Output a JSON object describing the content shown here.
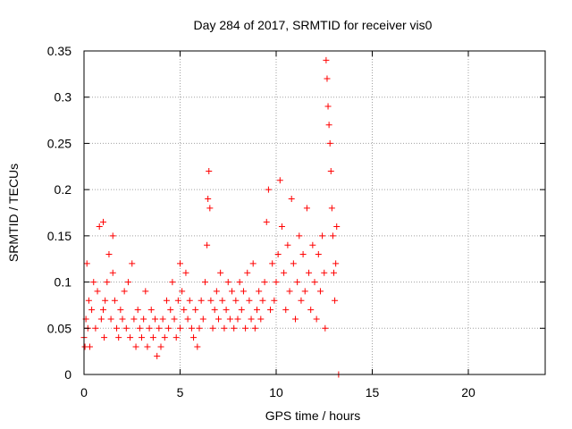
{
  "chart_data": {
    "type": "scatter",
    "title": "Day 284 of 2017, SRMTID for receiver vis0",
    "xlabel": "GPS time / hours",
    "ylabel": "SRMTID / TECUs",
    "xlim": [
      0,
      24
    ],
    "ylim": [
      0,
      0.35
    ],
    "xticks": [
      0,
      5,
      10,
      15,
      20
    ],
    "yticks": [
      0,
      0.05,
      0.1,
      0.15,
      0.2,
      0.25,
      0.3,
      0.35
    ],
    "xtick_labels": [
      "0",
      "5",
      "10",
      "15",
      "20"
    ],
    "ytick_labels": [
      "0",
      "0.05",
      "0.1",
      "0.15",
      "0.2",
      "0.25",
      "0.3",
      "0.35"
    ],
    "grid": true,
    "marker": "+",
    "color": "#ff0000",
    "series": [
      {
        "name": "vis0",
        "x": [
          0.0,
          0.05,
          0.1,
          0.15,
          0.2,
          0.25,
          0.3,
          0.4,
          0.5,
          0.6,
          0.7,
          0.8,
          0.9,
          1.0,
          1.0,
          1.05,
          1.1,
          1.2,
          1.3,
          1.4,
          1.5,
          1.5,
          1.6,
          1.7,
          1.8,
          1.9,
          2.0,
          2.1,
          2.2,
          2.3,
          2.4,
          2.5,
          2.6,
          2.7,
          2.8,
          2.9,
          3.0,
          3.1,
          3.2,
          3.3,
          3.4,
          3.5,
          3.6,
          3.7,
          3.8,
          3.9,
          4.0,
          4.1,
          4.2,
          4.3,
          4.4,
          4.5,
          4.6,
          4.7,
          4.8,
          4.9,
          5.0,
          5.0,
          5.1,
          5.2,
          5.3,
          5.4,
          5.5,
          5.6,
          5.7,
          5.8,
          5.9,
          6.0,
          6.1,
          6.2,
          6.3,
          6.4,
          6.45,
          6.5,
          6.55,
          6.6,
          6.7,
          6.8,
          6.9,
          7.0,
          7.1,
          7.2,
          7.3,
          7.4,
          7.5,
          7.6,
          7.7,
          7.8,
          7.9,
          8.0,
          8.1,
          8.2,
          8.3,
          8.4,
          8.5,
          8.6,
          8.7,
          8.8,
          8.9,
          9.0,
          9.1,
          9.2,
          9.3,
          9.4,
          9.5,
          9.6,
          9.7,
          9.8,
          9.9,
          10.0,
          10.1,
          10.2,
          10.3,
          10.4,
          10.5,
          10.6,
          10.7,
          10.8,
          10.9,
          11.0,
          11.1,
          11.2,
          11.3,
          11.4,
          11.5,
          11.6,
          11.7,
          11.8,
          11.9,
          12.0,
          12.1,
          12.2,
          12.3,
          12.4,
          12.5,
          12.55,
          12.6,
          12.65,
          12.7,
          12.75,
          12.8,
          12.85,
          12.9,
          12.95,
          13.0,
          13.05,
          13.1,
          13.15,
          13.25
        ],
        "y": [
          0.04,
          0.03,
          0.06,
          0.12,
          0.05,
          0.08,
          0.03,
          0.07,
          0.1,
          0.05,
          0.09,
          0.16,
          0.06,
          0.07,
          0.165,
          0.04,
          0.08,
          0.1,
          0.13,
          0.06,
          0.15,
          0.11,
          0.08,
          0.05,
          0.04,
          0.07,
          0.06,
          0.09,
          0.05,
          0.1,
          0.04,
          0.12,
          0.06,
          0.03,
          0.07,
          0.05,
          0.04,
          0.06,
          0.09,
          0.03,
          0.05,
          0.07,
          0.04,
          0.06,
          0.02,
          0.05,
          0.03,
          0.06,
          0.04,
          0.08,
          0.05,
          0.07,
          0.1,
          0.06,
          0.04,
          0.08,
          0.12,
          0.05,
          0.09,
          0.07,
          0.11,
          0.06,
          0.08,
          0.05,
          0.04,
          0.07,
          0.03,
          0.05,
          0.08,
          0.06,
          0.1,
          0.14,
          0.19,
          0.22,
          0.18,
          0.08,
          0.05,
          0.07,
          0.09,
          0.06,
          0.11,
          0.08,
          0.05,
          0.07,
          0.1,
          0.06,
          0.09,
          0.05,
          0.08,
          0.06,
          0.1,
          0.07,
          0.09,
          0.05,
          0.11,
          0.08,
          0.06,
          0.12,
          0.05,
          0.07,
          0.09,
          0.06,
          0.08,
          0.1,
          0.165,
          0.2,
          0.07,
          0.12,
          0.08,
          0.1,
          0.13,
          0.21,
          0.16,
          0.11,
          0.07,
          0.14,
          0.09,
          0.19,
          0.12,
          0.06,
          0.1,
          0.15,
          0.08,
          0.13,
          0.09,
          0.18,
          0.11,
          0.07,
          0.14,
          0.1,
          0.06,
          0.13,
          0.09,
          0.15,
          0.11,
          0.05,
          0.34,
          0.32,
          0.29,
          0.27,
          0.25,
          0.22,
          0.18,
          0.15,
          0.11,
          0.08,
          0.12,
          0.16,
          0.0
        ]
      }
    ]
  }
}
